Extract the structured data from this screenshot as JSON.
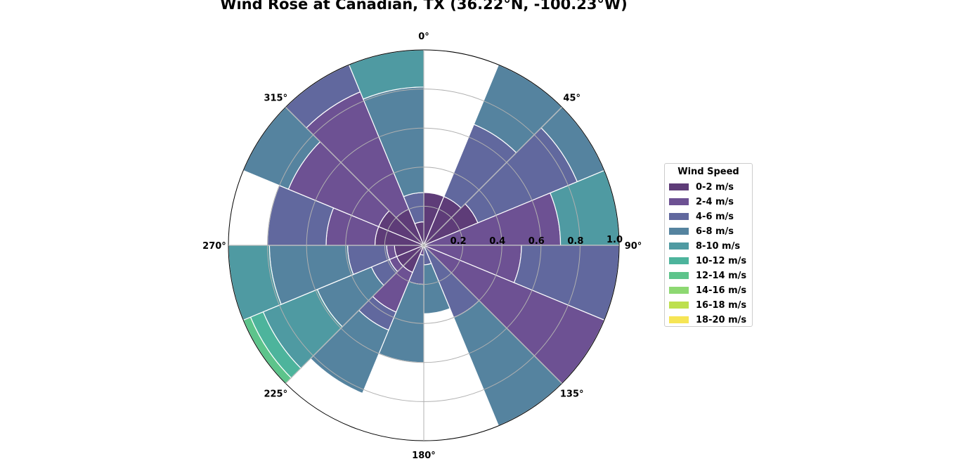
{
  "chart_data": {
    "type": "bar",
    "subtype": "polar-stacked",
    "title": "Wind Rose at Canadian, TX (36.22°N, -100.23°W)",
    "direction_labels": [
      "0°",
      "45°",
      "90°",
      "135°",
      "180°",
      "225°",
      "270°",
      "315°"
    ],
    "radial_ticks": [
      0.2,
      0.4,
      0.6,
      0.8,
      1.0
    ],
    "rlim": [
      0,
      1.0
    ],
    "theta_zero": "N",
    "theta_direction": "clockwise",
    "legend_title": "Wind Speed",
    "legend_position": "right",
    "grid": true,
    "sector_width_deg": 22.5,
    "sector_center_offset_deg": 11.25,
    "categories": [
      "11.25°",
      "33.75°",
      "56.25°",
      "78.75°",
      "101.25°",
      "123.75°",
      "146.25°",
      "168.75°",
      "191.25°",
      "213.75°",
      "236.25°",
      "258.75°",
      "281.25°",
      "303.75°",
      "326.25°",
      "348.75°"
    ],
    "series": [
      {
        "name": "0-2 m/s",
        "color": "#5e3c78",
        "values": [
          0.27,
          0.27,
          0.3,
          0.0,
          0.0,
          0.0,
          0.0,
          0.0,
          0.0,
          0.15,
          0.15,
          0.15,
          0.25,
          0.25,
          0.2,
          0.12
        ]
      },
      {
        "name": "2-4 m/s",
        "color": "#6d5193",
        "values": [
          0.0,
          0.0,
          0.0,
          0.7,
          0.5,
          1.0,
          0.0,
          0.0,
          0.05,
          0.22,
          0.04,
          0.04,
          0.25,
          0.5,
          0.65,
          0.0
        ]
      },
      {
        "name": "4-6 m/s",
        "color": "#61689e",
        "values": [
          0.0,
          0.4,
          0.55,
          0.0,
          1.0,
          0.0,
          0.4,
          0.1,
          0.15,
          0.1,
          0.1,
          0.2,
          0.3,
          0.0,
          0.3,
          0.15
        ]
      },
      {
        "name": "6-8 m/s",
        "color": "#55839f",
        "values": [
          0.0,
          0.55,
          0.35,
          0.0,
          0.0,
          0.0,
          0.6,
          0.25,
          0.4,
          0.35,
          0.3,
          0.4,
          0.0,
          0.25,
          0.2,
          0.54
        ]
      },
      {
        "name": "8-10 m/s",
        "color": "#4f9aa2",
        "values": [
          0.0,
          0.0,
          0.0,
          0.3,
          0.0,
          0.0,
          0.0,
          0.0,
          0.0,
          0.0,
          0.3,
          0.32,
          0.0,
          0.0,
          0.0,
          0.2
        ]
      },
      {
        "name": "10-12 m/s",
        "color": "#4db49c",
        "values": [
          0.0,
          0.0,
          0.0,
          0.0,
          0.0,
          0.0,
          0.0,
          0.0,
          0.0,
          0.0,
          0.07,
          0.0,
          0.0,
          0.0,
          0.0,
          0.0
        ]
      },
      {
        "name": "12-14 m/s",
        "color": "#5dc48b",
        "values": [
          0.0,
          0.0,
          0.0,
          0.0,
          0.0,
          0.0,
          0.0,
          0.0,
          0.0,
          0.0,
          0.07,
          0.07,
          0.0,
          0.0,
          0.0,
          0.0
        ]
      },
      {
        "name": "14-16 m/s",
        "color": "#8dd872",
        "values": [
          0.0,
          0.0,
          0.0,
          0.0,
          0.0,
          0.0,
          0.0,
          0.0,
          0.0,
          0.0,
          0.0,
          0.0,
          0.0,
          0.0,
          0.0,
          0.0
        ]
      },
      {
        "name": "16-18 m/s",
        "color": "#bde04f",
        "values": [
          0.0,
          0.0,
          0.0,
          0.0,
          0.0,
          0.0,
          0.0,
          0.0,
          0.0,
          0.0,
          0.0,
          0.0,
          0.0,
          0.0,
          0.0,
          0.0
        ]
      },
      {
        "name": "18-20 m/s",
        "color": "#f6e555",
        "values": [
          0.0,
          0.0,
          0.0,
          0.0,
          0.0,
          0.0,
          0.0,
          0.0,
          0.0,
          0.0,
          0.0,
          0.0,
          0.0,
          0.0,
          0.0,
          0.0
        ]
      }
    ]
  }
}
